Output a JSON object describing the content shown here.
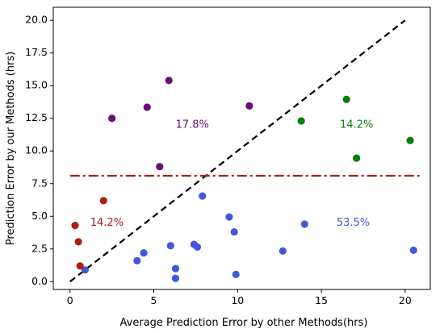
{
  "chart_data": {
    "type": "scatter",
    "title": "",
    "xlabel": "Average Prediction Error by other Methods(hrs)",
    "ylabel": "Prediction Error by our Methods (hrs)",
    "xlim": [
      -1.0,
      21.5
    ],
    "ylim": [
      -0.6,
      21.0
    ],
    "xticks": [
      0,
      5,
      10,
      15,
      20
    ],
    "xtick_labels": [
      "0",
      "5",
      "10",
      "15",
      "20"
    ],
    "yticks": [
      0.0,
      2.5,
      5.0,
      7.5,
      10.0,
      12.5,
      15.0,
      17.5,
      20.0
    ],
    "ytick_labels": [
      "0.0",
      "2.5",
      "5.0",
      "7.5",
      "10.0",
      "12.5",
      "15.0",
      "17.5",
      "20.0"
    ],
    "grid": false,
    "series": [
      {
        "color": "#4059d8",
        "points": [
          [
            0.9,
            0.9
          ],
          [
            4.0,
            1.6
          ],
          [
            4.4,
            2.2
          ],
          [
            6.0,
            2.75
          ],
          [
            6.3,
            1.0
          ],
          [
            6.3,
            0.25
          ],
          [
            7.4,
            2.85
          ],
          [
            7.6,
            2.65
          ],
          [
            7.9,
            6.55
          ],
          [
            9.5,
            4.95
          ],
          [
            9.8,
            3.8
          ],
          [
            9.9,
            0.55
          ],
          [
            12.7,
            2.35
          ],
          [
            14.0,
            4.4
          ],
          [
            20.5,
            2.4
          ]
        ]
      },
      {
        "color": "#6a0e7c",
        "points": [
          [
            2.5,
            12.5
          ],
          [
            4.6,
            13.35
          ],
          [
            5.35,
            8.8
          ],
          [
            5.9,
            15.4
          ],
          [
            10.7,
            13.45
          ]
        ]
      },
      {
        "color": "#0a7d0a",
        "points": [
          [
            13.8,
            12.3
          ],
          [
            16.5,
            13.95
          ],
          [
            17.1,
            9.45
          ],
          [
            20.3,
            10.8
          ]
        ]
      },
      {
        "color": "#a82015",
        "points": [
          [
            0.3,
            4.3
          ],
          [
            0.5,
            3.05
          ],
          [
            0.6,
            1.2
          ],
          [
            2.0,
            6.2
          ]
        ]
      }
    ],
    "reference_lines": [
      {
        "kind": "diagonal",
        "from": [
          0,
          0
        ],
        "to": [
          20,
          20
        ],
        "color": "#000000",
        "style": "dashed"
      },
      {
        "kind": "horizontal",
        "y": 8.1,
        "x_from": 0,
        "x_to": 21,
        "color": "#a82015",
        "style": "dashdot"
      }
    ],
    "annotations": [
      {
        "text": "17.8%",
        "x": 7.3,
        "y": 12.0,
        "color": "#6a0e7c"
      },
      {
        "text": "14.2%",
        "x": 17.1,
        "y": 12.0,
        "color": "#0a7d0a"
      },
      {
        "text": "14.2%",
        "x": 2.2,
        "y": 4.5,
        "color": "#a82015"
      },
      {
        "text": "53.5%",
        "x": 16.9,
        "y": 4.5,
        "color": "#4059d8"
      }
    ]
  }
}
